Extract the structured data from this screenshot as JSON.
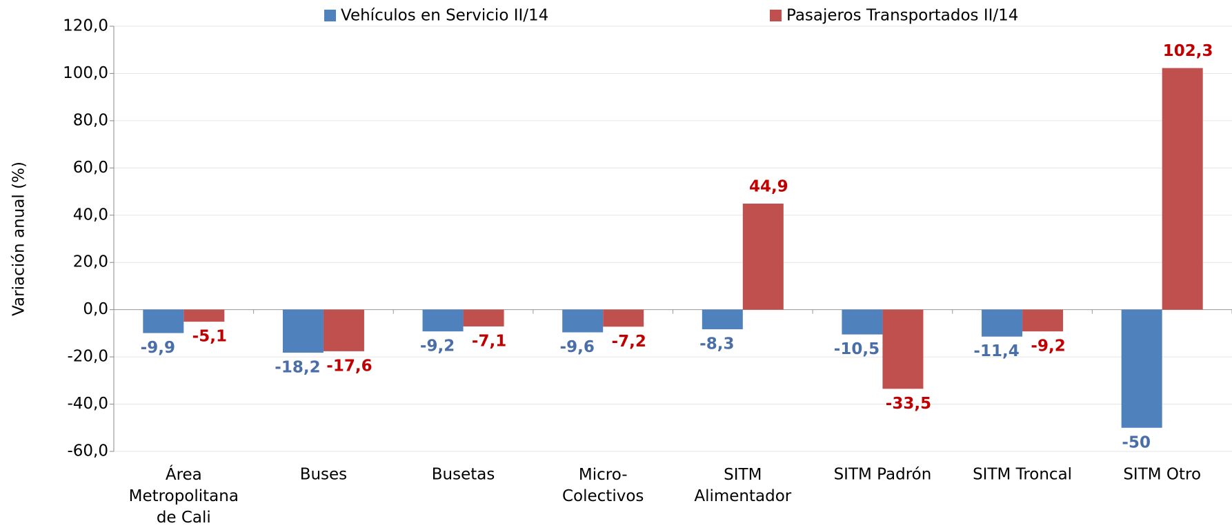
{
  "chart_data": {
    "type": "bar",
    "y_label": "Variación anual (%)",
    "categories": [
      "Área\nMetropolitana\nde Cali",
      "Buses",
      "Busetas",
      "Micro-\nColectivos",
      "SITM\nAlimentador",
      "SITM Padrón",
      "SITM Troncal",
      "SITM Otro"
    ],
    "series": [
      {
        "name": "Vehículos en Servicio II/14",
        "color": "#4f81bd",
        "label_color": "#4a6ea8",
        "values": [
          -9.9,
          -18.2,
          -9.2,
          -9.6,
          -8.3,
          -10.5,
          -11.4,
          -50
        ],
        "value_labels": [
          "-9,9",
          "-18,2",
          "-9,2",
          "-9,6",
          "-8,3",
          "-10,5",
          "-11,4",
          "-50"
        ]
      },
      {
        "name": "Pasajeros Transportados II/14",
        "color": "#c0504d",
        "label_color": "#c00000",
        "values": [
          -5.1,
          -17.6,
          -7.1,
          -7.2,
          44.9,
          -33.5,
          -9.2,
          102.3
        ],
        "value_labels": [
          "-5,1",
          "-17,6",
          "-7,1",
          "-7,2",
          "44,9",
          "-33,5",
          "-9,2",
          "102,3"
        ]
      }
    ],
    "ylim": [
      -60,
      120
    ],
    "yticks": [
      {
        "value": -60,
        "label": "-60,0"
      },
      {
        "value": -40,
        "label": "-40,0"
      },
      {
        "value": -20,
        "label": "-20,0"
      },
      {
        "value": 0,
        "label": "0,0"
      },
      {
        "value": 20,
        "label": "20,0"
      },
      {
        "value": 40,
        "label": "40,0"
      },
      {
        "value": 60,
        "label": "60,0"
      },
      {
        "value": 80,
        "label": "80,0"
      },
      {
        "value": 100,
        "label": "100,0"
      },
      {
        "value": 120,
        "label": "120,0"
      }
    ],
    "grid": true
  }
}
